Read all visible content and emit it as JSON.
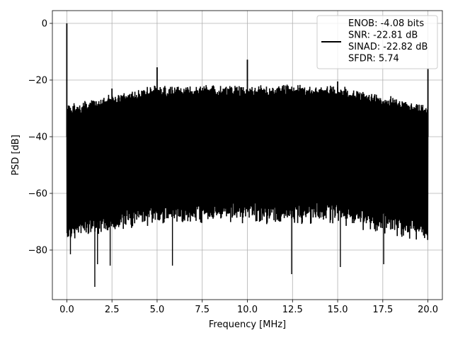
{
  "chart_data": {
    "type": "line",
    "title": "",
    "xlabel": "Frequency [MHz]",
    "ylabel": "PSD [dB]",
    "xlim": [
      -0.8,
      20.8
    ],
    "ylim": [
      -97.5,
      4.5
    ],
    "xticks": [
      0.0,
      2.5,
      5.0,
      7.5,
      10.0,
      12.5,
      15.0,
      17.5,
      20.0
    ],
    "xtick_labels": [
      "0.0",
      "2.5",
      "5.0",
      "7.5",
      "10.0",
      "12.5",
      "15.0",
      "17.5",
      "20.0"
    ],
    "yticks": [
      0,
      -20,
      -40,
      -60,
      -80
    ],
    "ytick_labels": [
      "0",
      "−20",
      "−40",
      "−60",
      "−80"
    ],
    "grid": true,
    "legend_position": "top-right",
    "line_color": "#000000",
    "noise_floor_band": {
      "x_range": [
        0,
        20
      ],
      "upper_db": [
        -30,
        -23
      ],
      "lower_db": [
        -72,
        -65
      ]
    },
    "spurs": [
      {
        "x": 0.0,
        "y": 0
      },
      {
        "x": 2.5,
        "y": -23
      },
      {
        "x": 5.0,
        "y": -15.5
      },
      {
        "x": 10.0,
        "y": -12.8
      },
      {
        "x": 15.0,
        "y": -20.5
      },
      {
        "x": 20.0,
        "y": -16
      }
    ],
    "deep_nulls": [
      {
        "x": 0.2,
        "y": -81.5
      },
      {
        "x": 1.55,
        "y": -93
      },
      {
        "x": 1.7,
        "y": -85
      },
      {
        "x": 2.4,
        "y": -85.5
      },
      {
        "x": 5.85,
        "y": -85.5
      },
      {
        "x": 12.45,
        "y": -88.5
      },
      {
        "x": 15.15,
        "y": -86
      },
      {
        "x": 17.55,
        "y": -85
      }
    ],
    "series": [
      {
        "name": "ENOB: -4.08 bits\nSNR: -22.81 dB\nSINAD: -22.82 dB\nSFDR: 5.74",
        "legend_lines": [
          "ENOB: -4.08 bits",
          "SNR: -22.81 dB",
          "SINAD: -22.82 dB",
          "SFDR: 5.74"
        ]
      }
    ]
  }
}
